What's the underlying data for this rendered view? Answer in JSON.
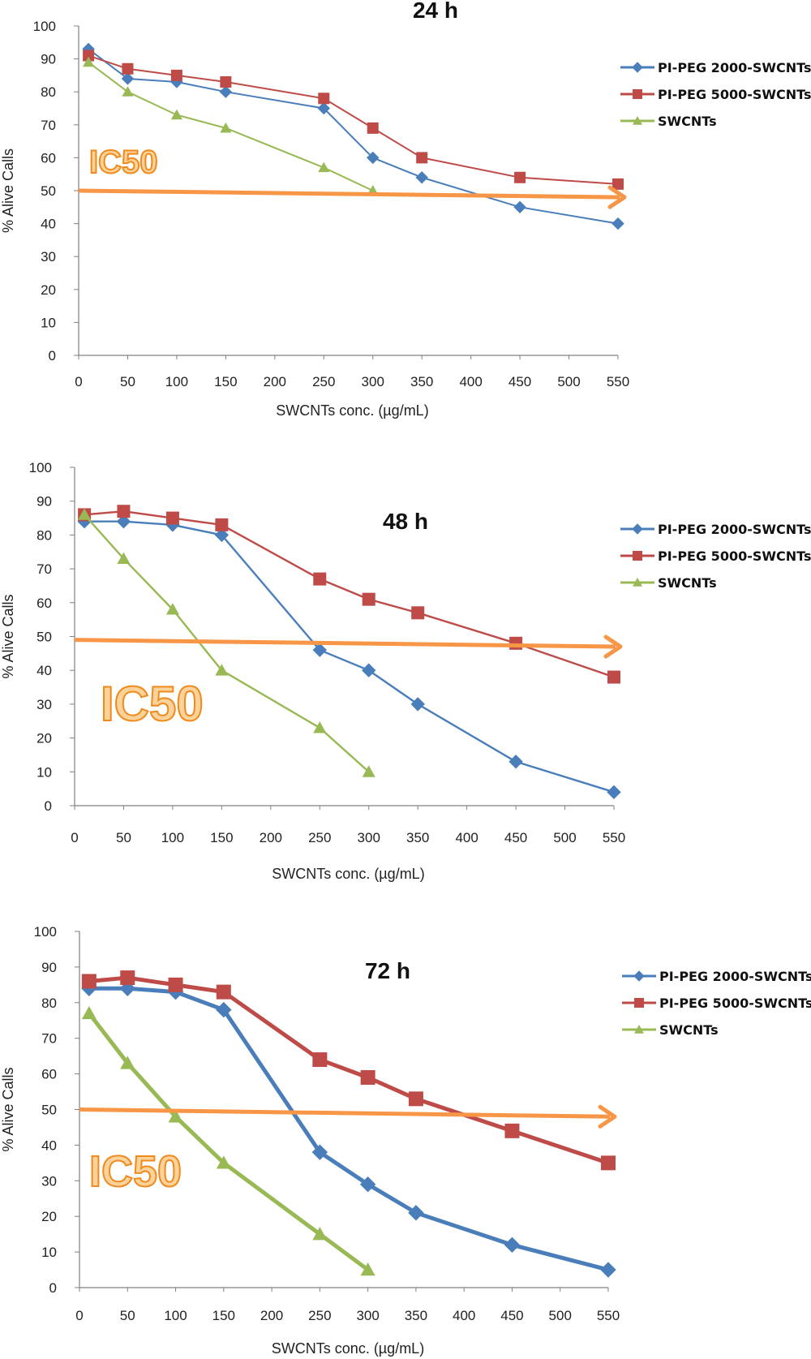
{
  "colors": {
    "series": [
      "#4a7ebb",
      "#be4b48",
      "#98b954"
    ],
    "ic50_arrow": "#f79646",
    "ic50_text_fill": "#fbd39a",
    "ic50_text_stroke": "#f08a1c"
  },
  "chart_data": [
    {
      "type": "line",
      "title": "24 h",
      "xlabel": "SWCNTs conc. (µg/mL)",
      "ylabel": "% Alive Calls",
      "ylim": [
        0,
        100
      ],
      "yticks": [
        0,
        10,
        20,
        30,
        40,
        50,
        60,
        70,
        80,
        90,
        100
      ],
      "xticks": [
        0,
        50,
        100,
        150,
        200,
        250,
        300,
        350,
        400,
        450,
        500,
        550
      ],
      "legend_position": "right",
      "annotation": "IC50",
      "ic50_line": [
        50,
        48
      ],
      "series": [
        {
          "name": "PI-PEG 2000-SWCNTs",
          "marker": "diamond",
          "x": [
            10,
            50,
            100,
            150,
            250,
            300,
            350,
            450,
            550
          ],
          "y": [
            93,
            84,
            83,
            80,
            75,
            60,
            54,
            45,
            40
          ]
        },
        {
          "name": "PI-PEG 5000-SWCNTs",
          "marker": "square",
          "x": [
            10,
            50,
            100,
            150,
            250,
            300,
            350,
            450,
            550
          ],
          "y": [
            91,
            87,
            85,
            83,
            78,
            69,
            60,
            54,
            52
          ]
        },
        {
          "name": "SWCNTs",
          "marker": "triangle",
          "x": [
            10,
            50,
            100,
            150,
            250,
            300
          ],
          "y": [
            89,
            80,
            73,
            69,
            57,
            50
          ]
        }
      ]
    },
    {
      "type": "line",
      "title": "48 h",
      "xlabel": "SWCNTs conc. (µg/mL)",
      "ylabel": "% Alive Calls",
      "ylim": [
        0,
        100
      ],
      "yticks": [
        0,
        10,
        20,
        30,
        40,
        50,
        60,
        70,
        80,
        90,
        100
      ],
      "xticks": [
        0,
        50,
        100,
        150,
        200,
        250,
        300,
        350,
        400,
        450,
        500,
        550
      ],
      "legend_position": "right",
      "annotation": "IC50",
      "ic50_line": [
        49,
        47
      ],
      "series": [
        {
          "name": "PI-PEG 2000-SWCNTs",
          "marker": "diamond",
          "x": [
            10,
            50,
            100,
            150,
            250,
            300,
            350,
            450,
            550
          ],
          "y": [
            84,
            84,
            83,
            80,
            46,
            40,
            30,
            13,
            4
          ]
        },
        {
          "name": "PI-PEG 5000-SWCNTs",
          "marker": "square",
          "x": [
            10,
            50,
            100,
            150,
            250,
            300,
            350,
            450,
            550
          ],
          "y": [
            86,
            87,
            85,
            83,
            67,
            61,
            57,
            48,
            38
          ]
        },
        {
          "name": "SWCNTs",
          "marker": "triangle",
          "x": [
            10,
            50,
            100,
            150,
            250,
            300
          ],
          "y": [
            86,
            73,
            58,
            40,
            23,
            10
          ]
        }
      ]
    },
    {
      "type": "line",
      "title": "72 h",
      "xlabel": "SWCNTs conc. (µg/mL)",
      "ylabel": "% Alive Calls",
      "ylim": [
        0,
        100
      ],
      "yticks": [
        0,
        10,
        20,
        30,
        40,
        50,
        60,
        70,
        80,
        90,
        100
      ],
      "xticks": [
        0,
        50,
        100,
        150,
        200,
        250,
        300,
        350,
        400,
        450,
        500,
        550
      ],
      "legend_position": "right",
      "annotation": "IC50",
      "ic50_line": [
        50,
        48
      ],
      "series": [
        {
          "name": "PI-PEG 2000-SWCNTs",
          "marker": "diamond",
          "x": [
            10,
            50,
            100,
            150,
            250,
            300,
            350,
            450,
            550
          ],
          "y": [
            84,
            84,
            83,
            78,
            38,
            29,
            21,
            12,
            5
          ]
        },
        {
          "name": "PI-PEG 5000-SWCNTs",
          "marker": "square",
          "x": [
            10,
            50,
            100,
            150,
            250,
            300,
            350,
            450,
            550
          ],
          "y": [
            86,
            87,
            85,
            83,
            64,
            59,
            53,
            44,
            35
          ]
        },
        {
          "name": "SWCNTs",
          "marker": "triangle",
          "x": [
            10,
            50,
            100,
            150,
            250,
            300
          ],
          "y": [
            77,
            63,
            48,
            35,
            15,
            5
          ]
        }
      ]
    }
  ]
}
